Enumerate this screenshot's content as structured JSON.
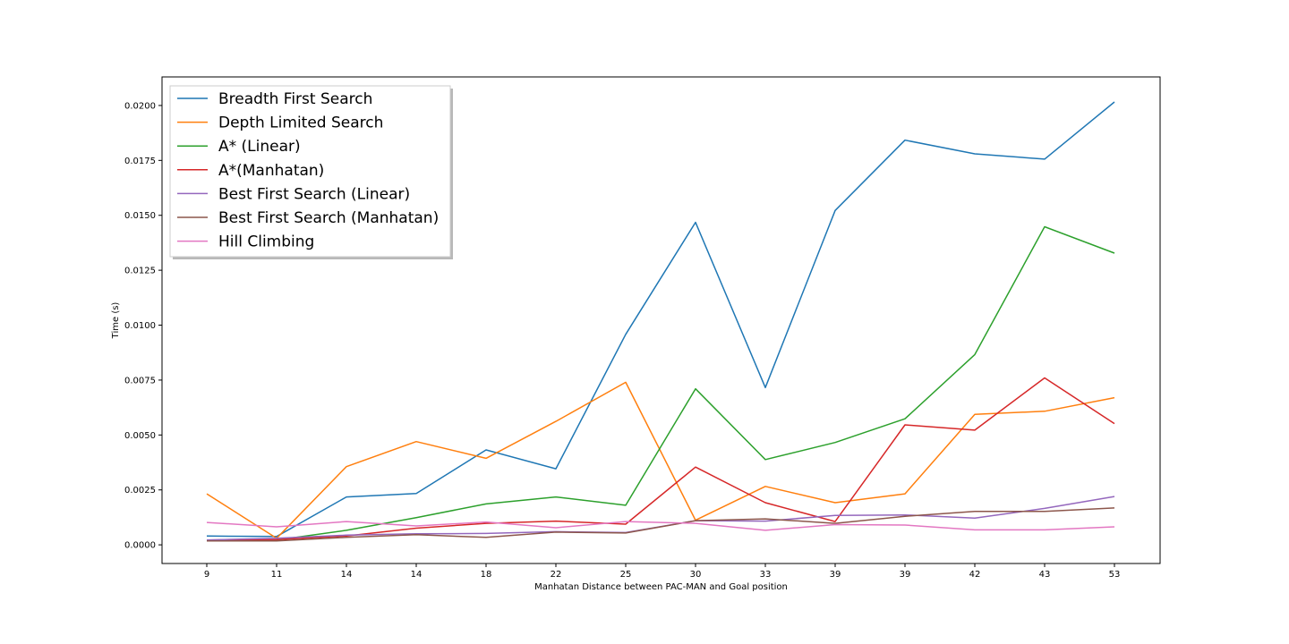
{
  "chart_data": {
    "type": "line",
    "title": "",
    "xlabel": "Manhatan Distance between PAC-MAN and Goal position",
    "ylabel": "Time (s)",
    "x": [
      "9",
      "11",
      "14",
      "14",
      "18",
      "22",
      "25",
      "30",
      "33",
      "39",
      "39",
      "42",
      "43",
      "53"
    ],
    "ylim": [
      -0.00085,
      0.0213
    ],
    "yticks": [
      "0.0000",
      "0.0025",
      "0.0050",
      "0.0075",
      "0.0100",
      "0.0125",
      "0.0150",
      "0.0175",
      "0.0200"
    ],
    "grid": false,
    "legend_position": "top-left",
    "series": [
      {
        "name": "Breadth First Search",
        "color": "#1f77b4",
        "values": [
          0.0004,
          0.00038,
          0.00218,
          0.00234,
          0.00432,
          0.00346,
          0.00958,
          0.01468,
          0.00716,
          0.01522,
          0.01842,
          0.0178,
          0.01756,
          0.02016
        ]
      },
      {
        "name": "Depth Limited Search",
        "color": "#ff7f0e",
        "values": [
          0.00232,
          0.0003,
          0.00356,
          0.0047,
          0.00394,
          0.00562,
          0.0074,
          0.00112,
          0.00266,
          0.00192,
          0.00232,
          0.00594,
          0.00608,
          0.0067
        ]
      },
      {
        "name": "A* (Linear)",
        "color": "#2ca02c",
        "values": [
          0.0002,
          0.00022,
          0.00066,
          0.00124,
          0.00186,
          0.00218,
          0.0018,
          0.0071,
          0.00388,
          0.00466,
          0.00574,
          0.00866,
          0.01448,
          0.01328
        ]
      },
      {
        "name": "A*(Manhatan)",
        "color": "#d62728",
        "values": [
          0.00022,
          0.00024,
          0.0004,
          0.00076,
          0.00098,
          0.00108,
          0.00094,
          0.00354,
          0.00192,
          0.00106,
          0.00546,
          0.00522,
          0.0076,
          0.00552
        ]
      },
      {
        "name": "Best First Search (Linear)",
        "color": "#9467bd",
        "values": [
          0.00022,
          0.0003,
          0.00044,
          0.0005,
          0.00052,
          0.0006,
          0.00056,
          0.0011,
          0.00108,
          0.00134,
          0.00136,
          0.00122,
          0.00166,
          0.0022
        ]
      },
      {
        "name": "Best First Search (Manhatan)",
        "color": "#8c564b",
        "values": [
          0.00018,
          0.00018,
          0.00034,
          0.00046,
          0.00034,
          0.00058,
          0.00054,
          0.0011,
          0.00118,
          0.00098,
          0.0013,
          0.00152,
          0.00152,
          0.00168
        ]
      },
      {
        "name": "Hill Climbing",
        "color": "#e377c2",
        "values": [
          0.00102,
          0.00082,
          0.00106,
          0.00086,
          0.00104,
          0.00078,
          0.00106,
          0.00098,
          0.00066,
          0.00092,
          0.0009,
          0.00068,
          0.00068,
          0.00082
        ]
      }
    ]
  }
}
